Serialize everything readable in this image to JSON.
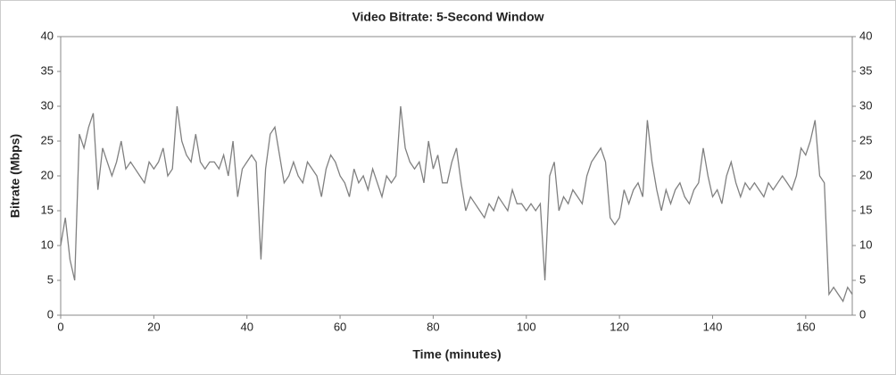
{
  "chart_data": {
    "type": "line",
    "title": "Video Bitrate: 5-Second Window",
    "x_label": "Time (minutes)",
    "y_label": "Bitrate (Mbps)",
    "x": [
      0,
      1,
      2,
      3,
      4,
      5,
      6,
      7,
      8,
      9,
      10,
      11,
      12,
      13,
      14,
      15,
      16,
      17,
      18,
      19,
      20,
      21,
      22,
      23,
      24,
      25,
      26,
      27,
      28,
      29,
      30,
      31,
      32,
      33,
      34,
      35,
      36,
      37,
      38,
      39,
      40,
      41,
      42,
      43,
      44,
      45,
      46,
      47,
      48,
      49,
      50,
      51,
      52,
      53,
      54,
      55,
      56,
      57,
      58,
      59,
      60,
      61,
      62,
      63,
      64,
      65,
      66,
      67,
      68,
      69,
      70,
      71,
      72,
      73,
      74,
      75,
      76,
      77,
      78,
      79,
      80,
      81,
      82,
      83,
      84,
      85,
      86,
      87,
      88,
      89,
      90,
      91,
      92,
      93,
      94,
      95,
      96,
      97,
      98,
      99,
      100,
      101,
      102,
      103,
      104,
      105,
      106,
      107,
      108,
      109,
      110,
      111,
      112,
      113,
      114,
      115,
      116,
      117,
      118,
      119,
      120,
      121,
      122,
      123,
      124,
      125,
      126,
      127,
      128,
      129,
      130,
      131,
      132,
      133,
      134,
      135,
      136,
      137,
      138,
      139,
      140,
      141,
      142,
      143,
      144,
      145,
      146,
      147,
      148,
      149,
      150,
      151,
      152,
      153,
      154,
      155,
      156,
      157,
      158,
      159,
      160,
      161,
      162,
      163,
      164,
      165,
      166,
      167,
      168,
      169,
      170
    ],
    "series": [
      {
        "name": "Bitrate",
        "color": "#808080",
        "values": [
          10,
          14,
          8,
          5,
          26,
          24,
          27,
          29,
          18,
          24,
          22,
          20,
          22,
          25,
          21,
          22,
          21,
          20,
          19,
          22,
          21,
          22,
          24,
          20,
          21,
          30,
          25,
          23,
          22,
          26,
          22,
          21,
          22,
          22,
          21,
          23,
          20,
          25,
          17,
          21,
          22,
          23,
          22,
          8,
          21,
          26,
          27,
          23,
          19,
          20,
          22,
          20,
          19,
          22,
          21,
          20,
          17,
          21,
          23,
          22,
          20,
          19,
          17,
          21,
          19,
          20,
          18,
          21,
          19,
          17,
          20,
          19,
          20,
          30,
          24,
          22,
          21,
          22,
          19,
          25,
          21,
          23,
          19,
          19,
          22,
          24,
          19,
          15,
          17,
          16,
          15,
          14,
          16,
          15,
          17,
          16,
          15,
          18,
          16,
          16,
          15,
          16,
          15,
          16,
          5,
          20,
          22,
          15,
          17,
          16,
          18,
          17,
          16,
          20,
          22,
          23,
          24,
          22,
          14,
          13,
          14,
          18,
          16,
          18,
          19,
          17,
          28,
          22,
          18,
          15,
          18,
          16,
          18,
          19,
          17,
          16,
          18,
          19,
          24,
          20,
          17,
          18,
          16,
          20,
          22,
          19,
          17,
          19,
          18,
          19,
          18,
          17,
          19,
          18,
          19,
          20,
          19,
          18,
          20,
          24,
          23,
          25,
          28,
          20,
          19,
          3,
          4,
          3,
          2,
          4,
          3
        ]
      }
    ],
    "xlim": [
      0,
      170
    ],
    "xticks": [
      0,
      20,
      40,
      60,
      80,
      100,
      120,
      140,
      160
    ],
    "ylim": [
      0,
      40
    ],
    "yticks": [
      0,
      5,
      10,
      15,
      20,
      25,
      30,
      35,
      40
    ],
    "y2lim": [
      0,
      40
    ],
    "y2ticks": [
      0,
      5,
      10,
      15,
      20,
      25,
      30,
      35,
      40
    ]
  }
}
